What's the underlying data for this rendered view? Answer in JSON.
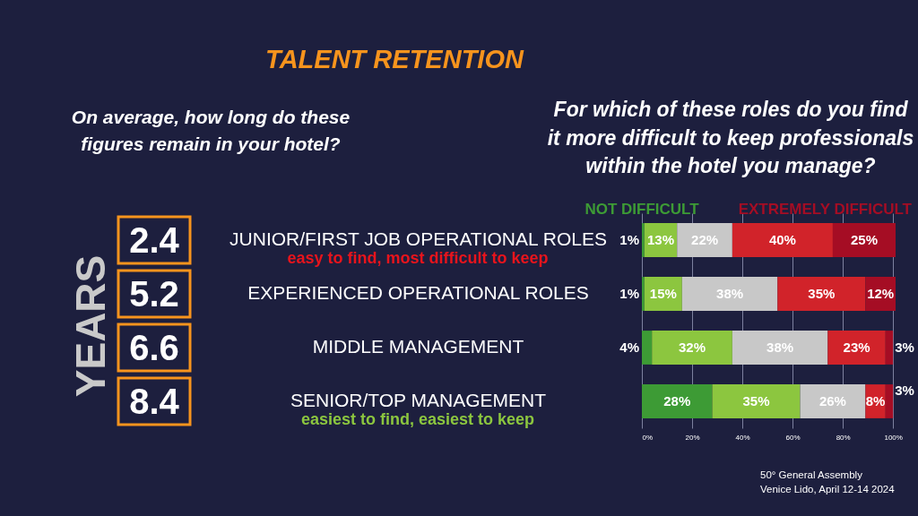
{
  "chart_data": [
    {
      "type": "other",
      "title": "TALENT RETENTION",
      "subtitle": "On average, how long do these figures remain in your hotel?",
      "ylabel": "YEARS",
      "values": [
        2.4,
        5.2,
        6.6,
        8.4
      ],
      "data_labels": true
    },
    {
      "type": "bar",
      "orientation": "horizontal",
      "stacked": true,
      "title": "For which of these roles do you find it more difficult to keep professionals within the hotel you manage?",
      "categories": [
        "JUNIOR/FIRST JOB OPERATIONAL ROLES",
        "EXPERIENCED OPERATIONAL ROLES",
        "MIDDLE MANAGEMENT",
        "SENIOR/TOP MANAGEMENT"
      ],
      "series": [
        {
          "name": "NOT DIFFICULT",
          "color": "#3d9b35",
          "values": [
            1,
            1,
            4,
            28
          ],
          "value_labels": [
            "1%",
            "1%",
            "4%",
            "28%"
          ]
        },
        {
          "color": "#8cc63f",
          "values": [
            13,
            15,
            32,
            35
          ],
          "value_labels": [
            "13%",
            "15%",
            "32%",
            "35%"
          ]
        },
        {
          "color": "#c8c8c8",
          "values": [
            22,
            38,
            38,
            26
          ],
          "value_labels": [
            "22%",
            "38%",
            "38%",
            "26%"
          ]
        },
        {
          "color": "#d1232a",
          "values": [
            40,
            35,
            23,
            8
          ],
          "value_labels": [
            "40%",
            "35%",
            "23%",
            "8%"
          ]
        },
        {
          "name": "EXTREMELY DIFFICULT",
          "color": "#a50d24",
          "values": [
            25,
            12,
            3,
            3
          ],
          "value_labels": [
            "25%",
            "12%",
            "3%",
            "3%"
          ]
        }
      ],
      "xlim": [
        0,
        101
      ],
      "xticks": [
        {
          "value": 0,
          "label": "0%"
        },
        {
          "value": 20,
          "label": "20%"
        },
        {
          "value": 40,
          "label": "40%"
        },
        {
          "value": 60,
          "label": "60%"
        },
        {
          "value": 80,
          "label": "80%"
        },
        {
          "value": 100,
          "label": "100%"
        }
      ],
      "grid": "x",
      "legend": "top",
      "annotations": [
        "easy to find, most difficult to keep",
        "easiest to find, easiest to keep",
        "50° General Assembly",
        "Venice Lido, April 12-14 2024"
      ]
    }
  ]
}
